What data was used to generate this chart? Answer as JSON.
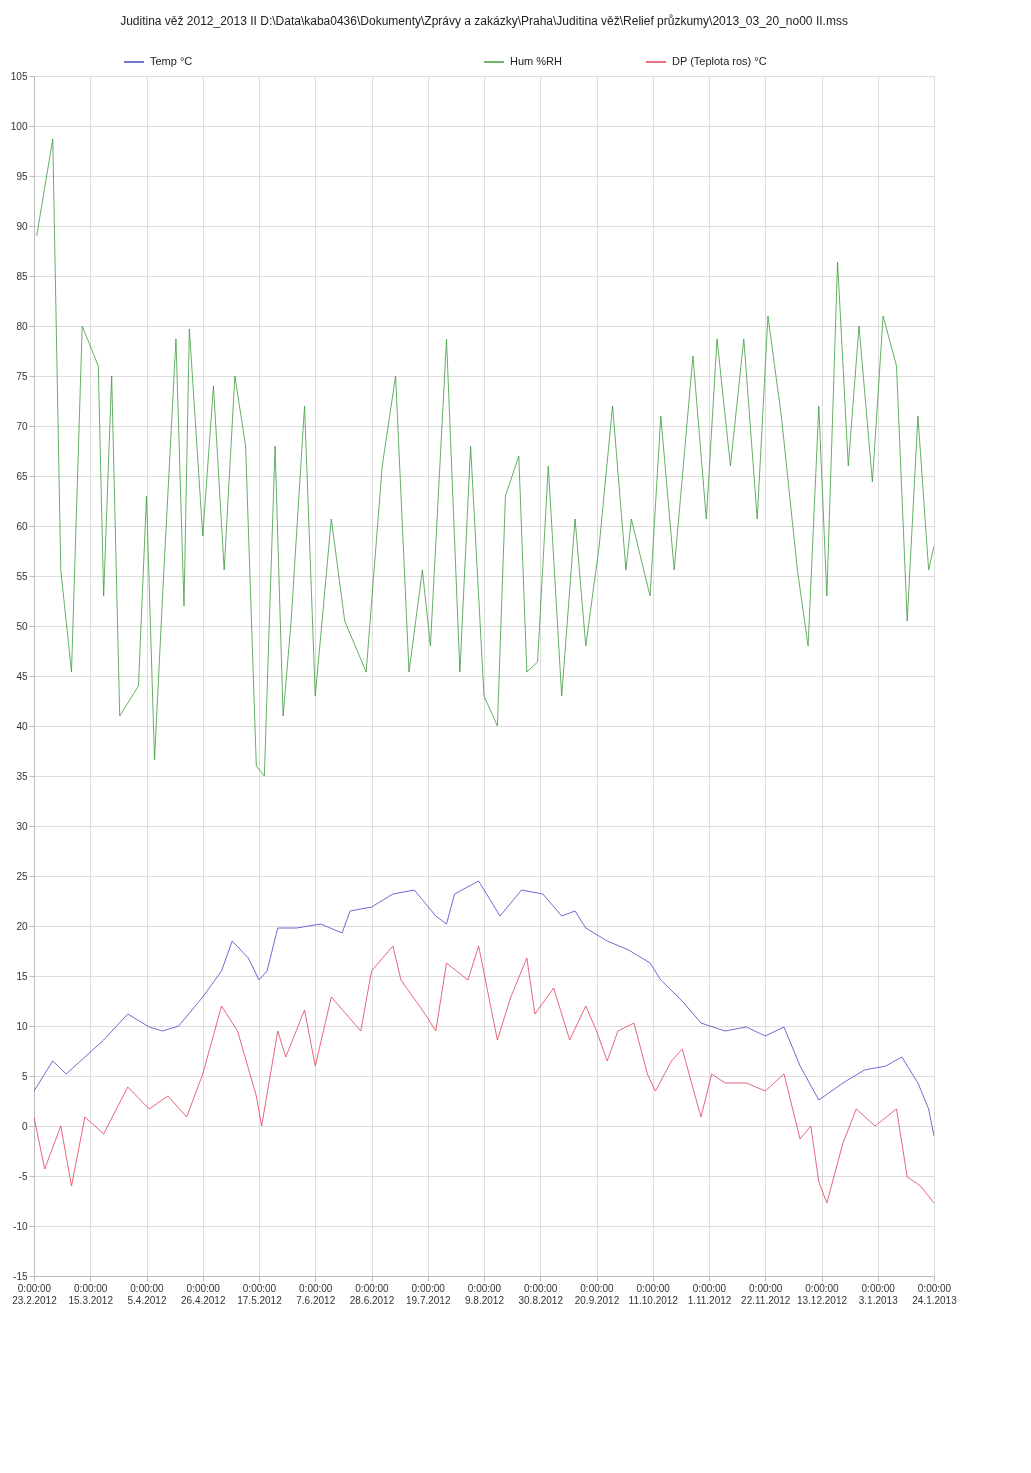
{
  "chart_data": {
    "type": "line",
    "title": "Juditina věž 2012_2013 II   D:\\Data\\kaba0436\\Dokumenty\\Zprávy a zakázky\\Praha\\Juditina věž\\Relief průzkumy\\2013_03_20_no00 II.mss",
    "xlim": [
      "2012-02-23",
      "2013-01-24"
    ],
    "xticks": [
      {
        "value": "2012-02-23",
        "label": "0:00:00 23.2.2012"
      },
      {
        "value": "2012-03-15",
        "label": "0:00:00 15.3.2012"
      },
      {
        "value": "2012-04-05",
        "label": "0:00:00 5.4.2012"
      },
      {
        "value": "2012-04-26",
        "label": "0:00:00 26.4.2012"
      },
      {
        "value": "2012-05-17",
        "label": "0:00:00 17.5.2012"
      },
      {
        "value": "2012-06-07",
        "label": "0:00:00 7.6.2012"
      },
      {
        "value": "2012-06-28",
        "label": "0:00:00 28.6.2012"
      },
      {
        "value": "2012-07-19",
        "label": "0:00:00 19.7.2012"
      },
      {
        "value": "2012-08-09",
        "label": "0:00:00 9.8.2012"
      },
      {
        "value": "2012-08-30",
        "label": "0:00:00 30.8.2012"
      },
      {
        "value": "2012-09-20",
        "label": "0:00:00 20.9.2012"
      },
      {
        "value": "2012-10-11",
        "label": "0:00:00 11.10.2012"
      },
      {
        "value": "2012-11-01",
        "label": "0:00:00 1.11.2012"
      },
      {
        "value": "2012-11-22",
        "label": "0:00:00 22.11.2012"
      },
      {
        "value": "2012-12-13",
        "label": "0:00:00 13.12.2012"
      },
      {
        "value": "2013-01-03",
        "label": "0:00:00 3.1.2013"
      },
      {
        "value": "2013-01-24",
        "label": "0:00:00 24.1.2013"
      }
    ],
    "ylim": [
      -15,
      105
    ],
    "yticks": [
      -15,
      -10,
      -5,
      0,
      5,
      10,
      15,
      20,
      25,
      30,
      35,
      40,
      45,
      50,
      55,
      60,
      65,
      70,
      75,
      80,
      85,
      90,
      95,
      100,
      105
    ],
    "grid": true,
    "legend": "top",
    "line_style": "solid",
    "marker": "none",
    "series": [
      {
        "name": "Temp °C",
        "color": "#4848c8",
        "x": [
          "2012-02-23",
          "2012-03-01",
          "2012-03-06",
          "2012-03-13",
          "2012-03-20",
          "2012-03-29",
          "2012-04-06",
          "2012-04-11",
          "2012-04-17",
          "2012-04-26",
          "2012-05-03",
          "2012-05-07",
          "2012-05-13",
          "2012-05-17",
          "2012-05-20",
          "2012-05-24",
          "2012-05-31",
          "2012-06-09",
          "2012-06-17",
          "2012-06-20",
          "2012-06-28",
          "2012-07-06",
          "2012-07-14",
          "2012-07-22",
          "2012-07-26",
          "2012-07-29",
          "2012-08-07",
          "2012-08-15",
          "2012-08-23",
          "2012-08-31",
          "2012-09-07",
          "2012-09-12",
          "2012-09-16",
          "2012-09-24",
          "2012-10-02",
          "2012-10-10",
          "2012-10-14",
          "2012-10-22",
          "2012-10-29",
          "2012-11-07",
          "2012-11-15",
          "2012-11-22",
          "2012-11-29",
          "2012-12-05",
          "2012-12-12",
          "2012-12-21",
          "2012-12-29",
          "2013-01-06",
          "2013-01-12",
          "2013-01-18",
          "2013-01-22",
          "2013-01-24"
        ],
        "values": [
          3.5,
          6.5,
          5.2,
          6.9,
          8.6,
          11.2,
          9.9,
          9.5,
          10,
          12.9,
          15.5,
          18.5,
          16.8,
          14.6,
          15.5,
          19.8,
          19.8,
          20.2,
          19.3,
          21.5,
          21.9,
          23.2,
          23.6,
          21,
          20.2,
          23.2,
          24.5,
          21,
          23.6,
          23.2,
          21,
          21.5,
          19.8,
          18.5,
          17.6,
          16.3,
          14.6,
          12.5,
          10.3,
          9.5,
          9.9,
          9,
          9.9,
          6,
          2.6,
          4.3,
          5.6,
          6,
          6.9,
          4.3,
          1.7,
          -1
        ]
      },
      {
        "name": "Hum %RH",
        "color": "#3c9c3c",
        "x": [
          "2012-02-24",
          "2012-03-01",
          "2012-03-04",
          "2012-03-08",
          "2012-03-12",
          "2012-03-18",
          "2012-03-20",
          "2012-03-23",
          "2012-03-26",
          "2012-04-02",
          "2012-04-05",
          "2012-04-08",
          "2012-04-11",
          "2012-04-16",
          "2012-04-19",
          "2012-04-21",
          "2012-04-26",
          "2012-04-30",
          "2012-05-04",
          "2012-05-08",
          "2012-05-12",
          "2012-05-16",
          "2012-05-19",
          "2012-05-23",
          "2012-05-26",
          "2012-05-29",
          "2012-06-03",
          "2012-06-07",
          "2012-06-13",
          "2012-06-18",
          "2012-06-26",
          "2012-07-02",
          "2012-07-07",
          "2012-07-12",
          "2012-07-17",
          "2012-07-20",
          "2012-07-26",
          "2012-07-31",
          "2012-08-04",
          "2012-08-09",
          "2012-08-14",
          "2012-08-17",
          "2012-08-22",
          "2012-08-25",
          "2012-08-29",
          "2012-09-02",
          "2012-09-07",
          "2012-09-12",
          "2012-09-16",
          "2012-09-21",
          "2012-09-26",
          "2012-10-01",
          "2012-10-03",
          "2012-10-10",
          "2012-10-14",
          "2012-10-19",
          "2012-10-26",
          "2012-10-31",
          "2012-11-04",
          "2012-11-09",
          "2012-11-14",
          "2012-11-19",
          "2012-11-23",
          "2012-11-28",
          "2012-12-04",
          "2012-12-08",
          "2012-12-12",
          "2012-12-15",
          "2012-12-19",
          "2012-12-23",
          "2012-12-27",
          "2013-01-01",
          "2013-01-05",
          "2013-01-10",
          "2013-01-14",
          "2013-01-18",
          "2013-01-22",
          "2013-01-24"
        ],
        "values": [
          89,
          98.7,
          55.6,
          45.4,
          80,
          76,
          53,
          75,
          41,
          44,
          63,
          36.6,
          53,
          78.7,
          52,
          79.7,
          59,
          74,
          55.6,
          75,
          68,
          36,
          35,
          68,
          41,
          50.5,
          72,
          43,
          60.7,
          50.5,
          45.4,
          66,
          75,
          45.4,
          55.6,
          48,
          78.7,
          45.4,
          68,
          43,
          40,
          63,
          67,
          45.4,
          46.4,
          66,
          43,
          60.7,
          48,
          58,
          72,
          55.6,
          60.7,
          53,
          71,
          55.6,
          77,
          60.7,
          78.7,
          66,
          78.7,
          60.7,
          81,
          71,
          55.6,
          48,
          72,
          53,
          86.4,
          66,
          80,
          64.4,
          81,
          76,
          50.5,
          71,
          55.6,
          58
        ]
      },
      {
        "name": "DP (Teplota ros) °C",
        "color": "#e0405a",
        "x": [
          "2012-02-23",
          "2012-02-27",
          "2012-03-04",
          "2012-03-08",
          "2012-03-13",
          "2012-03-20",
          "2012-03-29",
          "2012-04-06",
          "2012-04-13",
          "2012-04-20",
          "2012-04-26",
          "2012-05-03",
          "2012-05-09",
          "2012-05-16",
          "2012-05-18",
          "2012-05-24",
          "2012-05-27",
          "2012-06-03",
          "2012-06-07",
          "2012-06-13",
          "2012-06-24",
          "2012-06-28",
          "2012-07-06",
          "2012-07-09",
          "2012-07-18",
          "2012-07-22",
          "2012-07-26",
          "2012-08-03",
          "2012-08-07",
          "2012-08-14",
          "2012-08-19",
          "2012-08-25",
          "2012-08-28",
          "2012-09-04",
          "2012-09-10",
          "2012-09-16",
          "2012-09-20",
          "2012-09-24",
          "2012-09-28",
          "2012-10-04",
          "2012-10-09",
          "2012-10-12",
          "2012-10-18",
          "2012-10-22",
          "2012-10-29",
          "2012-11-02",
          "2012-11-07",
          "2012-11-15",
          "2012-11-22",
          "2012-11-29",
          "2012-12-05",
          "2012-12-09",
          "2012-12-12",
          "2012-12-15",
          "2012-12-21",
          "2012-12-26",
          "2013-01-02",
          "2013-01-10",
          "2013-01-14",
          "2013-01-19",
          "2013-01-24"
        ],
        "values": [
          0.9,
          -4.3,
          0,
          -6,
          0.9,
          -0.8,
          3.9,
          1.7,
          3,
          0.9,
          5.2,
          12,
          9.5,
          3,
          0,
          9.5,
          6.9,
          11.6,
          6,
          12.9,
          9.5,
          15.5,
          18,
          14.6,
          11.2,
          9.5,
          16.3,
          14.6,
          18,
          8.6,
          12.9,
          16.8,
          11.2,
          13.8,
          8.6,
          12,
          9.5,
          6.5,
          9.5,
          10.3,
          5.2,
          3.5,
          6.5,
          7.7,
          0.9,
          5.2,
          4.3,
          4.3,
          3.5,
          5.2,
          -1.3,
          0,
          -5.6,
          -7.7,
          -1.7,
          1.7,
          0,
          1.7,
          -5.1,
          -6,
          -7.7
        ]
      }
    ]
  }
}
